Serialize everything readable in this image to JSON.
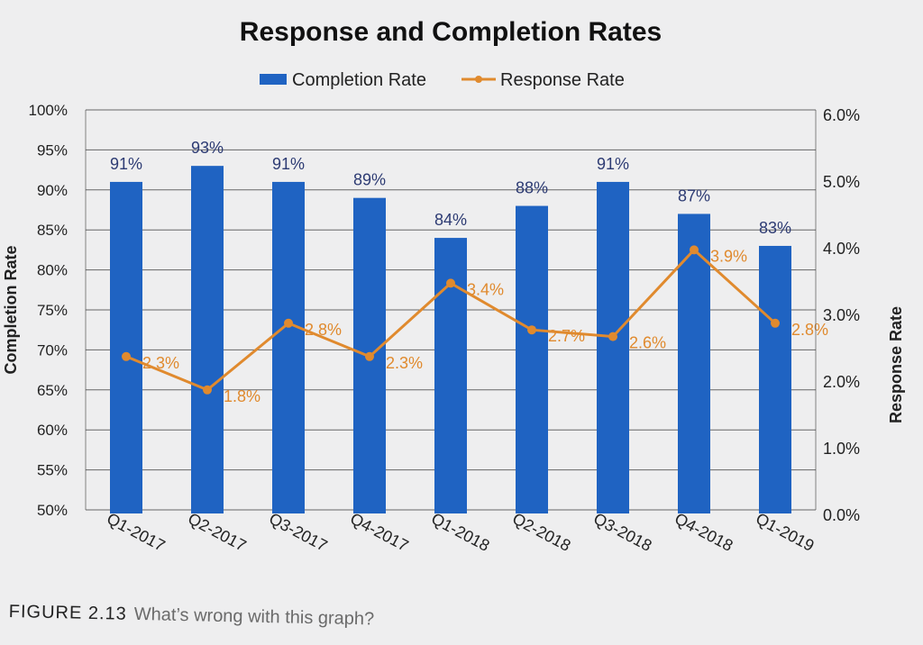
{
  "chart_data": {
    "type": "bar+line",
    "title": "Response and Completion Rates",
    "categories": [
      "Q1-2017",
      "Q2-2017",
      "Q3-2017",
      "Q4-2017",
      "Q1-2018",
      "Q2-2018",
      "Q3-2018",
      "Q4-2018",
      "Q1-2019"
    ],
    "series": [
      {
        "name": "Completion Rate",
        "type": "bar",
        "axis": "left",
        "values": [
          91,
          93,
          91,
          89,
          84,
          88,
          91,
          87,
          83
        ],
        "labels": [
          "91%",
          "93%",
          "91%",
          "89%",
          "84%",
          "88%",
          "91%",
          "87%",
          "83%"
        ]
      },
      {
        "name": "Response Rate",
        "type": "line",
        "axis": "right",
        "values": [
          2.3,
          1.8,
          2.8,
          2.3,
          3.4,
          2.7,
          2.6,
          3.9,
          2.8
        ],
        "labels": [
          "2.3%",
          "1.8%",
          "2.8%",
          "2.3%",
          "3.4%",
          "2.7%",
          "2.6%",
          "3.9%",
          "2.8%"
        ]
      }
    ],
    "ylabel": "Completion Rate",
    "y2label": "Response Rate",
    "ylim": [
      50,
      100
    ],
    "y2lim": [
      0,
      6
    ],
    "yticks": [
      "50%",
      "55%",
      "60%",
      "65%",
      "70%",
      "75%",
      "80%",
      "85%",
      "90%",
      "95%",
      "100%"
    ],
    "y2ticks": [
      "0.0%",
      "1.0%",
      "2.0%",
      "3.0%",
      "4.0%",
      "5.0%",
      "6.0%"
    ],
    "legend_position": "top-center",
    "grid": true,
    "colors": {
      "bar": "#1f63c2",
      "line": "#e08a2e",
      "grid": "#3a3a3a",
      "text": "#222222",
      "value_label": "#2d3b73"
    }
  },
  "caption": {
    "label": "FIGURE 2.13",
    "text": "What’s wrong with this graph?"
  }
}
